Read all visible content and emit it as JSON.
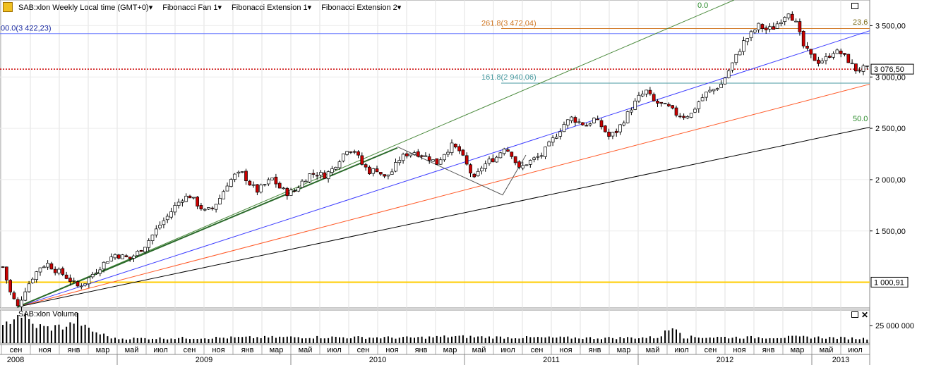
{
  "header": {
    "title": "SAB:xlon Weekly Local time (GMT+0)▾",
    "indicators": [
      "Fibonacci Fan 1▾",
      "Fibonacci Extension 1▾",
      "Fibonacci Extension 2▾"
    ]
  },
  "volume_title": "SAB:xlon Volume",
  "colors": {
    "up_candle": "#ffffff",
    "down_candle": "#cc0000",
    "wick": "#000000",
    "fan_green": "#4a8a3c",
    "fan_blue": "#3c3cff",
    "fan_red": "#ff5a28",
    "fan_black": "#000000",
    "last_price_line": "#cc0000",
    "support_line": "#ffcc00",
    "retracement_line": "#6e7eff",
    "ext1_color": "#d27a28",
    "ext2_color": "#4a9aa0"
  },
  "chart_data": {
    "type": "candlestick",
    "ylim": [
      750,
      3750
    ],
    "price_ticks": [
      "1 500,00",
      "2 000,00",
      "2 500,00",
      "3 000,00",
      "3 500,00"
    ],
    "last_price_label": "3 076,50",
    "support_label": "1 000,91",
    "fib_labels": {
      "retracement": "00.0(3 422,23)",
      "ext1": "261.8(3 472,04)",
      "ext2": "161.8(2 940,06)",
      "fan_0": "0.0",
      "fan_23": "23.6",
      "fan_50": "50.0"
    },
    "levels": {
      "last_price": 3076.5,
      "support": 1000.91,
      "retracement": 3422.23,
      "ext1": 3472.04,
      "ext2": 2940.06
    },
    "volume_tick": "25 000 000",
    "months": [
      "сен",
      "ноя",
      "янв",
      "мар",
      "май",
      "июл",
      "сен",
      "ноя",
      "янв",
      "мар",
      "май",
      "июл",
      "сен",
      "ноя",
      "янв",
      "мар",
      "май",
      "июл",
      "сен",
      "ноя",
      "янв",
      "мар",
      "май",
      "июл",
      "сен",
      "ноя",
      "янв",
      "мар",
      "май",
      "июл"
    ],
    "years": [
      "2008",
      "2009",
      "2010",
      "2011",
      "2012",
      "2013"
    ],
    "price_anchors": [
      [
        0,
        1150
      ],
      [
        2,
        900
      ],
      [
        4,
        760
      ],
      [
        6,
        930
      ],
      [
        8,
        1050
      ],
      [
        10,
        1150
      ],
      [
        12,
        1180
      ],
      [
        14,
        1120
      ],
      [
        16,
        1080
      ],
      [
        18,
        1020
      ],
      [
        20,
        960
      ],
      [
        22,
        1000
      ],
      [
        24,
        1080
      ],
      [
        26,
        1150
      ],
      [
        28,
        1220
      ],
      [
        30,
        1270
      ],
      [
        32,
        1250
      ],
      [
        34,
        1230
      ],
      [
        36,
        1290
      ],
      [
        38,
        1360
      ],
      [
        40,
        1460
      ],
      [
        42,
        1560
      ],
      [
        44,
        1640
      ],
      [
        46,
        1740
      ],
      [
        48,
        1820
      ],
      [
        50,
        1840
      ],
      [
        52,
        1760
      ],
      [
        54,
        1690
      ],
      [
        56,
        1720
      ],
      [
        58,
        1820
      ],
      [
        60,
        1960
      ],
      [
        62,
        2040
      ],
      [
        64,
        2060
      ],
      [
        66,
        1960
      ],
      [
        68,
        1890
      ],
      [
        70,
        1950
      ],
      [
        72,
        2010
      ],
      [
        74,
        1920
      ],
      [
        76,
        1870
      ],
      [
        78,
        1890
      ],
      [
        80,
        1980
      ],
      [
        82,
        2050
      ],
      [
        84,
        2060
      ],
      [
        86,
        2040
      ],
      [
        88,
        2100
      ],
      [
        90,
        2200
      ],
      [
        92,
        2300
      ],
      [
        94,
        2280
      ],
      [
        96,
        2150
      ],
      [
        98,
        2080
      ],
      [
        100,
        2100
      ],
      [
        102,
        2020
      ],
      [
        104,
        2080
      ],
      [
        106,
        2200
      ],
      [
        108,
        2250
      ],
      [
        110,
        2270
      ],
      [
        112,
        2240
      ],
      [
        114,
        2210
      ],
      [
        116,
        2160
      ],
      [
        118,
        2260
      ],
      [
        120,
        2330
      ],
      [
        122,
        2280
      ],
      [
        124,
        2140
      ],
      [
        126,
        2000
      ],
      [
        128,
        2120
      ],
      [
        130,
        2180
      ],
      [
        132,
        2220
      ],
      [
        134,
        2320
      ],
      [
        136,
        2250
      ],
      [
        138,
        2100
      ],
      [
        140,
        2160
      ],
      [
        142,
        2200
      ],
      [
        144,
        2240
      ],
      [
        146,
        2340
      ],
      [
        148,
        2440
      ],
      [
        150,
        2540
      ],
      [
        152,
        2600
      ],
      [
        154,
        2560
      ],
      [
        156,
        2530
      ],
      [
        158,
        2590
      ],
      [
        160,
        2520
      ],
      [
        162,
        2420
      ],
      [
        164,
        2470
      ],
      [
        166,
        2580
      ],
      [
        168,
        2700
      ],
      [
        170,
        2800
      ],
      [
        172,
        2860
      ],
      [
        174,
        2760
      ],
      [
        176,
        2730
      ],
      [
        178,
        2700
      ],
      [
        180,
        2640
      ],
      [
        182,
        2620
      ],
      [
        184,
        2640
      ],
      [
        186,
        2760
      ],
      [
        188,
        2840
      ],
      [
        190,
        2880
      ],
      [
        192,
        2930
      ],
      [
        194,
        3060
      ],
      [
        196,
        3200
      ],
      [
        198,
        3340
      ],
      [
        200,
        3420
      ],
      [
        202,
        3500
      ],
      [
        204,
        3460
      ],
      [
        206,
        3480
      ],
      [
        208,
        3560
      ],
      [
        210,
        3640
      ],
      [
        212,
        3520
      ],
      [
        214,
        3300
      ],
      [
        216,
        3200
      ],
      [
        218,
        3150
      ],
      [
        220,
        3180
      ],
      [
        222,
        3250
      ],
      [
        224,
        3230
      ],
      [
        226,
        3160
      ],
      [
        228,
        3070
      ],
      [
        230,
        3080
      ]
    ],
    "volume_anchors": [
      [
        0,
        0.5
      ],
      [
        3,
        0.9
      ],
      [
        5,
        0.95
      ],
      [
        8,
        0.6
      ],
      [
        12,
        0.5
      ],
      [
        16,
        0.55
      ],
      [
        18,
        0.6
      ],
      [
        20,
        0.85
      ],
      [
        22,
        0.5
      ],
      [
        25,
        0.35
      ],
      [
        30,
        0.15
      ],
      [
        50,
        0.17
      ],
      [
        80,
        0.2
      ],
      [
        110,
        0.18
      ],
      [
        120,
        0.22
      ],
      [
        135,
        0.19
      ],
      [
        160,
        0.17
      ],
      [
        175,
        0.19
      ],
      [
        180,
        0.6
      ],
      [
        182,
        0.2
      ],
      [
        200,
        0.19
      ],
      [
        215,
        0.2
      ],
      [
        231,
        0.15
      ]
    ]
  }
}
